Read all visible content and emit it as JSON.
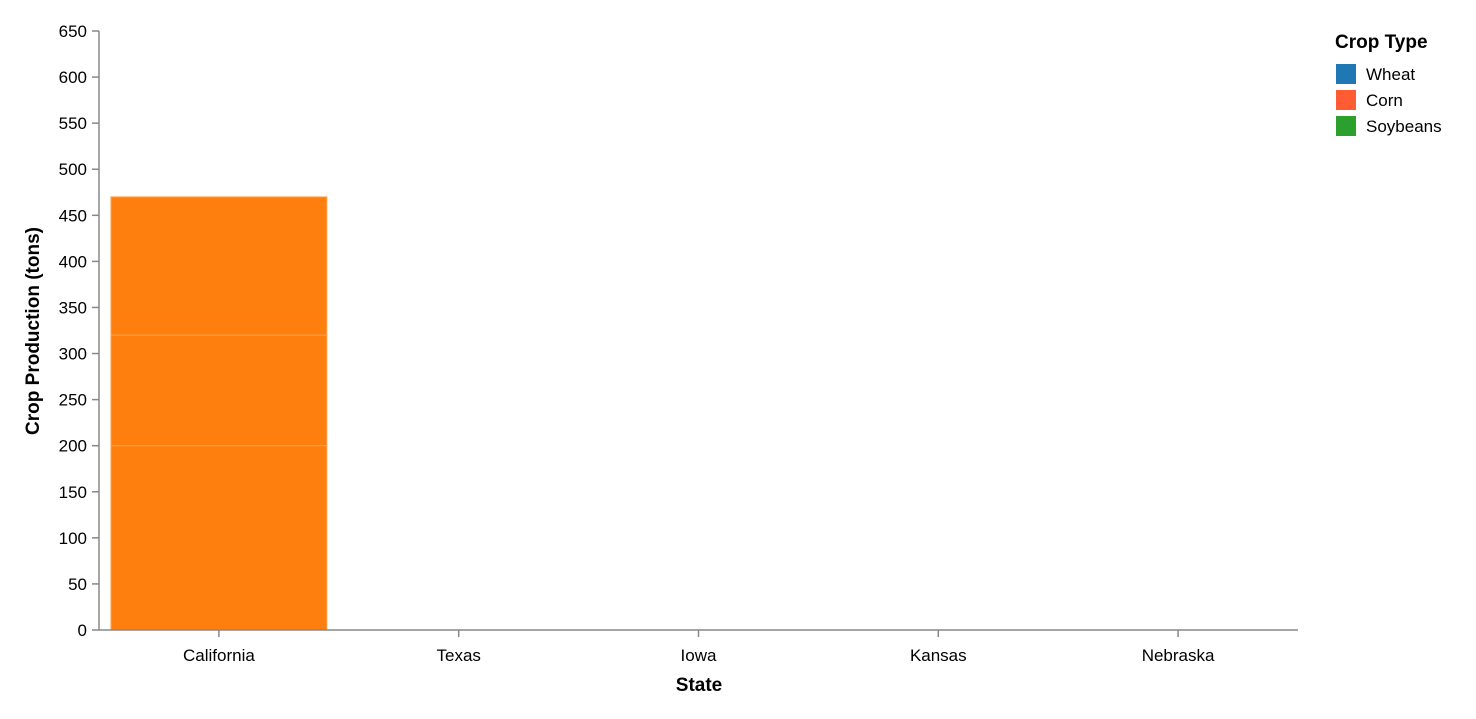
{
  "chart_data": {
    "type": "bar",
    "stacked": true,
    "categories": [
      "California",
      "Texas",
      "Iowa",
      "Kansas",
      "Nebraska"
    ],
    "series": [
      {
        "name": "Wheat",
        "values": [
          200,
          0,
          0,
          0,
          0
        ]
      },
      {
        "name": "Corn",
        "values": [
          120,
          0,
          0,
          0,
          0
        ]
      },
      {
        "name": "Soybeans",
        "values": [
          150,
          0,
          0,
          0,
          0
        ]
      }
    ],
    "xlabel": "State",
    "ylabel": "Crop Production (tons)",
    "ylim": [
      0,
      650
    ],
    "yticks": [
      0,
      50,
      100,
      150,
      200,
      250,
      300,
      350,
      400,
      450,
      500,
      550,
      600,
      650
    ],
    "grid": false,
    "bar_fill_color": "#ff7f0e",
    "bar_separator_color": "#ffa14d",
    "axis_color": "#888888",
    "legend": {
      "title": "Crop Type",
      "placement": "top-right",
      "items": [
        {
          "label": "Wheat",
          "color": "#1f77b4"
        },
        {
          "label": "Corn",
          "color": "#ff5c33"
        },
        {
          "label": "Soybeans",
          "color": "#2ca02c"
        }
      ]
    }
  }
}
